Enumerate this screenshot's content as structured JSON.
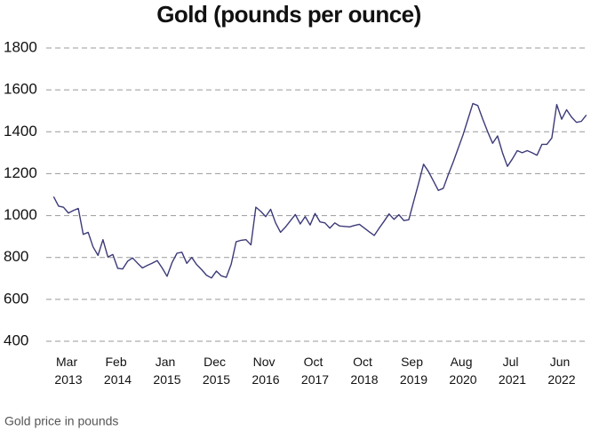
{
  "chart_data": {
    "type": "line",
    "title": "Gold (pounds per ounce)",
    "categories": [
      null,
      null,
      null,
      "Mar 2013",
      null,
      null,
      null,
      null,
      null,
      null,
      null,
      null,
      null,
      "Feb 2014",
      null,
      null,
      null,
      null,
      null,
      null,
      null,
      null,
      null,
      "Jan 2015",
      null,
      null,
      null,
      null,
      null,
      null,
      null,
      null,
      null,
      "Dec 2015",
      null,
      null,
      null,
      null,
      null,
      null,
      null,
      null,
      null,
      "Nov 2016",
      null,
      null,
      null,
      null,
      null,
      null,
      null,
      null,
      null,
      "Oct 2017",
      null,
      null,
      null,
      null,
      null,
      null,
      null,
      null,
      null,
      "Oct 2018",
      null,
      null,
      null,
      null,
      null,
      null,
      null,
      null,
      null,
      "Sep 2019",
      null,
      null,
      null,
      null,
      null,
      null,
      null,
      null,
      null,
      "Aug 2020",
      null,
      null,
      null,
      null,
      null,
      null,
      null,
      null,
      null,
      "Jul 2021",
      null,
      null,
      null,
      null,
      null,
      null,
      null,
      null,
      null,
      "Jun 2022",
      null,
      null,
      null,
      null,
      null
    ],
    "series": [
      {
        "color": "#3c3a78",
        "values": [
          1090,
          1045,
          1040,
          1012,
          1024,
          1034,
          910,
          920,
          850,
          810,
          885,
          802,
          814,
          748,
          745,
          782,
          798,
          773,
          750,
          762,
          773,
          785,
          750,
          710,
          775,
          820,
          825,
          772,
          800,
          766,
          742,
          715,
          702,
          735,
          712,
          705,
          768,
          875,
          882,
          885,
          860,
          1040,
          1020,
          995,
          1030,
          965,
          920,
          945,
          975,
          1005,
          960,
          995,
          955,
          1010,
          970,
          965,
          940,
          965,
          950,
          948,
          946,
          953,
          958,
          940,
          922,
          905,
          940,
          973,
          1008,
          982,
          1004,
          976,
          980,
          1068,
          1155,
          1245,
          1210,
          1165,
          1120,
          1130,
          1195,
          1255,
          1320,
          1385,
          1460,
          1535,
          1525,
          1460,
          1400,
          1345,
          1380,
          1300,
          1235,
          1270,
          1310,
          1300,
          1310,
          1300,
          1288,
          1340,
          1340,
          1370,
          1530,
          1460,
          1505,
          1470,
          1445,
          1450,
          1480
        ]
      }
    ],
    "ylim": [
      400,
      1800
    ],
    "yticks": [
      400,
      600,
      800,
      1000,
      1200,
      1400,
      1600,
      1800
    ],
    "grid": true
  },
  "caption": "Gold price in pounds"
}
